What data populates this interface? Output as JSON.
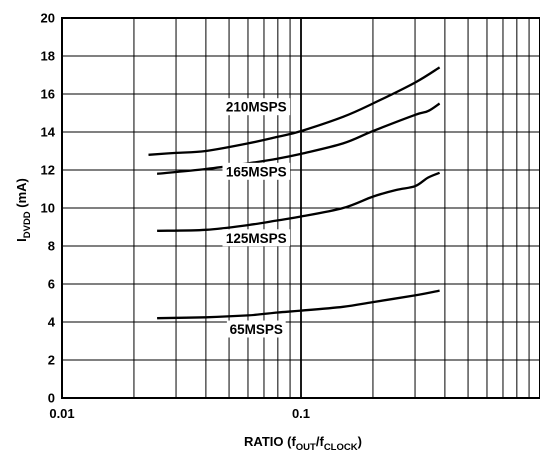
{
  "chart_data": {
    "type": "line",
    "title": "",
    "xlabel": {
      "main": "RATIO (f",
      "s1": "OUT",
      "mid": "/f",
      "s2": "CLOCK",
      "end": ")"
    },
    "ylabel": {
      "main": "I",
      "sub": "DVDD",
      "end": " (mA)"
    },
    "xscale": "log",
    "xlim": [
      0.01,
      1
    ],
    "ylim": [
      0,
      20
    ],
    "xticks": [
      0.01,
      0.1
    ],
    "xtick_labels": [
      "0.01",
      "0.1"
    ],
    "yticks": [
      0,
      2,
      4,
      6,
      8,
      10,
      12,
      14,
      16,
      18,
      20
    ],
    "grid": true,
    "series": [
      {
        "name": "210MSPS",
        "points": [
          [
            0.023,
            12.8
          ],
          [
            0.03,
            12.9
          ],
          [
            0.04,
            13.0
          ],
          [
            0.06,
            13.4
          ],
          [
            0.08,
            13.75
          ],
          [
            0.1,
            14.05
          ],
          [
            0.15,
            14.8
          ],
          [
            0.2,
            15.5
          ],
          [
            0.3,
            16.6
          ],
          [
            0.38,
            17.4
          ]
        ]
      },
      {
        "name": "165MSPS",
        "points": [
          [
            0.025,
            11.8
          ],
          [
            0.04,
            12.05
          ],
          [
            0.06,
            12.35
          ],
          [
            0.08,
            12.6
          ],
          [
            0.1,
            12.85
          ],
          [
            0.15,
            13.4
          ],
          [
            0.2,
            14.05
          ],
          [
            0.3,
            14.9
          ],
          [
            0.34,
            15.1
          ],
          [
            0.38,
            15.5
          ]
        ]
      },
      {
        "name": "125MSPS",
        "points": [
          [
            0.025,
            8.8
          ],
          [
            0.04,
            8.85
          ],
          [
            0.06,
            9.1
          ],
          [
            0.08,
            9.35
          ],
          [
            0.1,
            9.55
          ],
          [
            0.15,
            10.0
          ],
          [
            0.2,
            10.6
          ],
          [
            0.25,
            10.95
          ],
          [
            0.3,
            11.15
          ],
          [
            0.34,
            11.6
          ],
          [
            0.38,
            11.85
          ]
        ]
      },
      {
        "name": "65MSPS",
        "points": [
          [
            0.025,
            4.2
          ],
          [
            0.04,
            4.25
          ],
          [
            0.06,
            4.35
          ],
          [
            0.08,
            4.5
          ],
          [
            0.1,
            4.6
          ],
          [
            0.15,
            4.8
          ],
          [
            0.2,
            5.05
          ],
          [
            0.3,
            5.4
          ],
          [
            0.38,
            5.65
          ]
        ]
      }
    ]
  }
}
